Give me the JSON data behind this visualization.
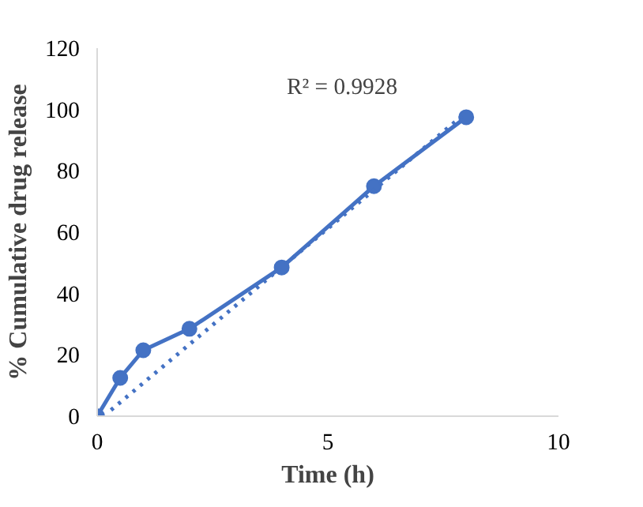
{
  "chart_data": {
    "type": "line",
    "xlabel": "Time (h)",
    "ylabel": "% Cumulative drug release",
    "x": [
      0,
      0.5,
      1,
      2,
      4,
      6,
      8
    ],
    "series": [
      {
        "color": "#4472c4",
        "values": [
          0,
          12.5,
          21.5,
          28.5,
          48.5,
          75,
          97.5
        ],
        "marker": "circle",
        "line_style": "solid"
      },
      {
        "color": "#4472c4",
        "x": [
          0.3,
          8
        ],
        "values": [
          2,
          99
        ],
        "marker": "none",
        "line_style": "dotted"
      }
    ],
    "annotations": [
      "R² = 0.9928"
    ],
    "xlim": [
      0,
      10
    ],
    "ylim": [
      0,
      120
    ],
    "xticks": [
      0,
      5,
      10
    ],
    "yticks": [
      0,
      20,
      40,
      60,
      80,
      100,
      120
    ],
    "grid": false
  }
}
